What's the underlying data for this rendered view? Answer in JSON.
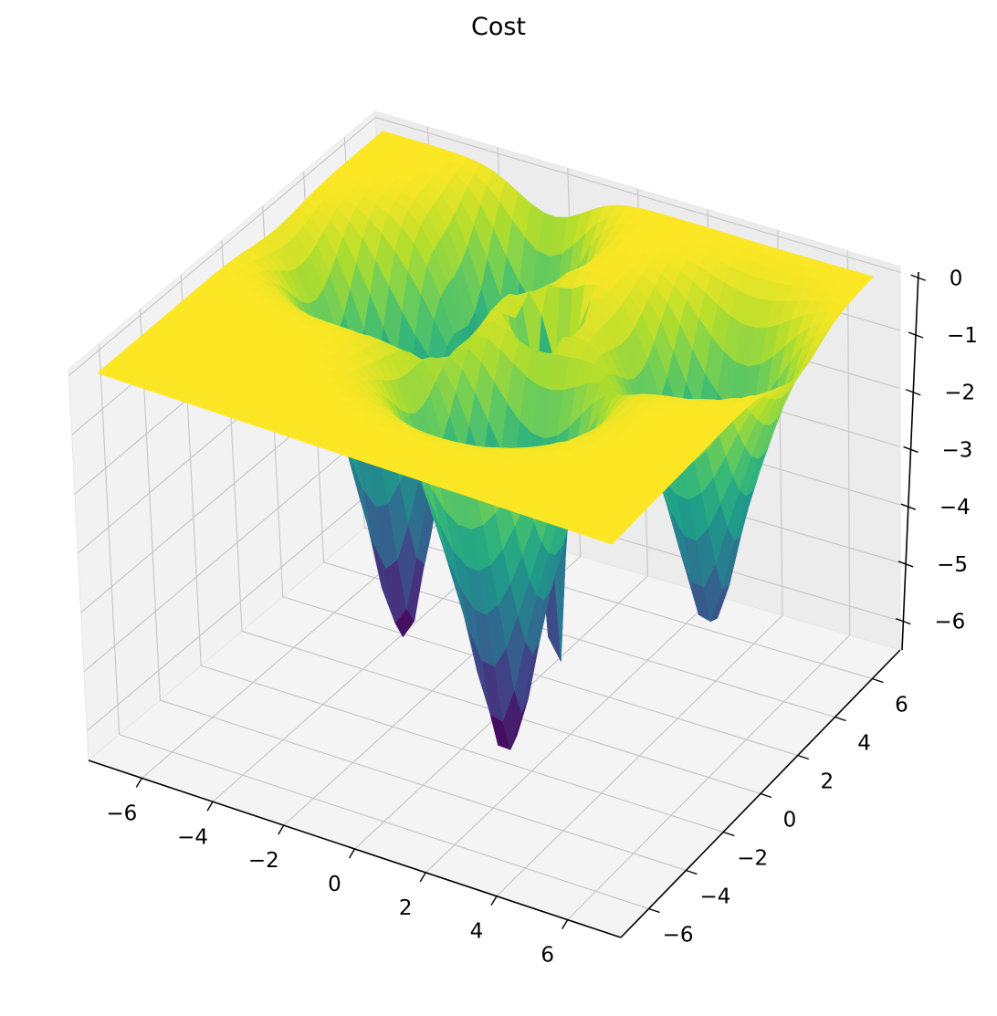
{
  "chart_data": {
    "type": "surface",
    "title": "Cost",
    "xlabel": "",
    "ylabel": "",
    "zlabel": "",
    "xlim": [
      -7.5,
      7.5
    ],
    "ylim": [
      -7.5,
      7.5
    ],
    "zlim": [
      -6.5,
      0.1
    ],
    "x_ticks": [
      "−6",
      "−4",
      "−2",
      "0",
      "2",
      "4",
      "6"
    ],
    "y_ticks": [
      "−6",
      "−4",
      "−2",
      "0",
      "2",
      "4",
      "6"
    ],
    "z_ticks": [
      "−6",
      "−5",
      "−4",
      "−3",
      "−2",
      "−1",
      "0"
    ],
    "x_tick_values": [
      -6,
      -4,
      -2,
      0,
      2,
      4,
      6
    ],
    "y_tick_values": [
      -6,
      -4,
      -2,
      0,
      2,
      4,
      6
    ],
    "z_tick_values": [
      -6,
      -5,
      -4,
      -3,
      -2,
      -1,
      0
    ],
    "colormap": "viridis",
    "grid": true,
    "surface": {
      "plateau_z": 0,
      "minima": [
        {
          "x": -3.8,
          "y": 1.7,
          "z": -6.1,
          "radius": 2.3
        },
        {
          "x": 0.9,
          "y": -1.3,
          "z": -6.3,
          "radius": 2.5
        },
        {
          "x": -2.2,
          "y": 5.0,
          "z": -5.2,
          "radius": 1.9
        },
        {
          "x": 4.4,
          "y": 3.0,
          "z": -4.9,
          "radius": 2.3
        },
        {
          "x": 0.2,
          "y": 2.5,
          "z": -6.4,
          "radius": 0.8
        }
      ]
    }
  }
}
